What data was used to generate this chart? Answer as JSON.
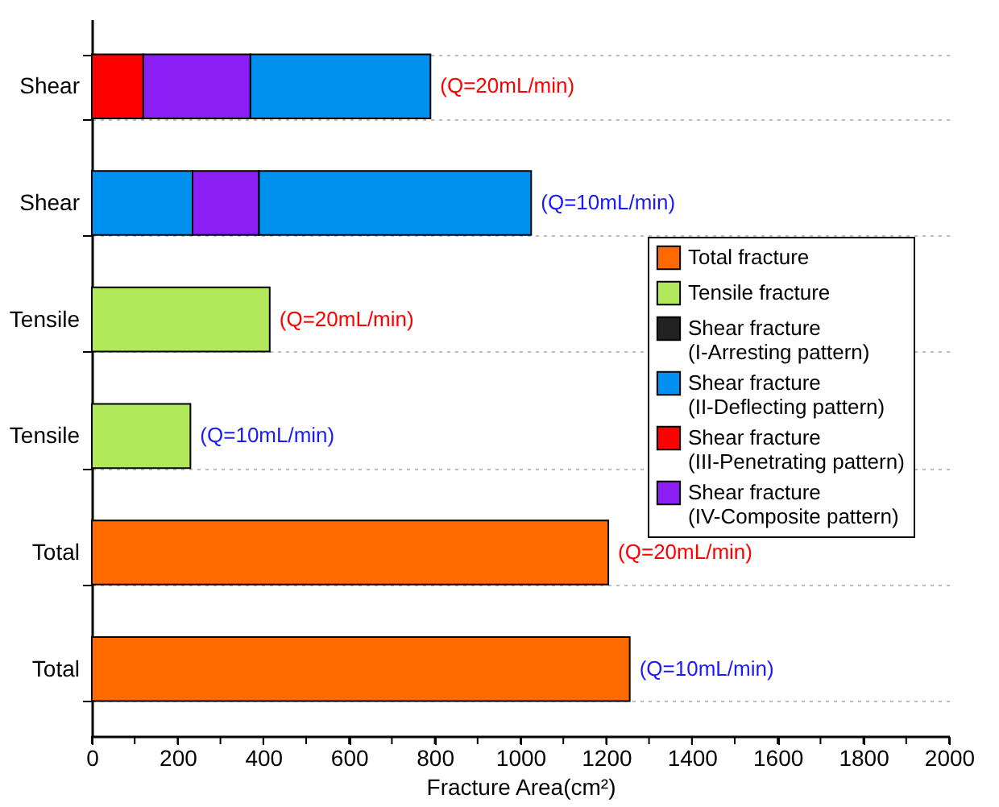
{
  "chart_data": {
    "type": "bar",
    "orientation": "horizontal",
    "stacked": true,
    "categories": [
      "Shear",
      "Shear",
      "Tensile",
      "Tensile",
      "Total",
      "Total"
    ],
    "series": [
      {
        "name": "Total fracture",
        "color": "#ff6a00",
        "values": [
          null,
          null,
          null,
          null,
          1205,
          1255
        ]
      },
      {
        "name": "Tensile fracture",
        "color": "#b0e85a",
        "values": [
          null,
          null,
          415,
          230,
          null,
          null
        ]
      },
      {
        "name": "Shear fracture (I-Arresting pattern)",
        "color": "#222222",
        "values": [
          null,
          null,
          null,
          null,
          null,
          null
        ]
      },
      {
        "name": "Shear fracture (II-Deflecting pattern)",
        "color": "#0090f0",
        "values": [
          null,
          235,
          null,
          null,
          null,
          null
        ]
      },
      {
        "name": "Shear fracture (III-Penetrating pattern)",
        "color": "#ff0000",
        "values": [
          120,
          null,
          null,
          null,
          null,
          null
        ]
      },
      {
        "name": "Shear fracture (IV-Composite pattern)",
        "color": "#8a1ef5",
        "values": [
          250,
          155,
          null,
          null,
          null,
          null
        ]
      },
      {
        "color": "#0090f0",
        "values": [
          420,
          635,
          null,
          null,
          null,
          null
        ]
      }
    ],
    "xlabel": "Fracture Area(cm²)",
    "xlim": [
      0,
      2000
    ],
    "xticks": [
      0,
      {
        "value": 100,
        "label": null
      },
      200,
      {
        "value": 300,
        "label": null
      },
      400,
      {
        "value": 500,
        "label": null
      },
      600,
      {
        "value": 700,
        "label": null
      },
      800,
      {
        "value": 900,
        "label": null
      },
      1000,
      {
        "value": 1100,
        "label": null
      },
      1200,
      {
        "value": 1300,
        "label": null
      },
      1400,
      {
        "value": 1500,
        "label": null
      },
      1600,
      {
        "value": 1700,
        "label": null
      },
      1800,
      {
        "value": 1900,
        "label": null
      },
      2000
    ],
    "annotations": [
      "(Q=20mL/min)",
      "(Q=10mL/min)",
      "(Q=20mL/min)",
      "(Q=10mL/min)",
      "(Q=20mL/min)",
      "(Q=10mL/min)"
    ],
    "grid": "y",
    "legend": "right"
  }
}
